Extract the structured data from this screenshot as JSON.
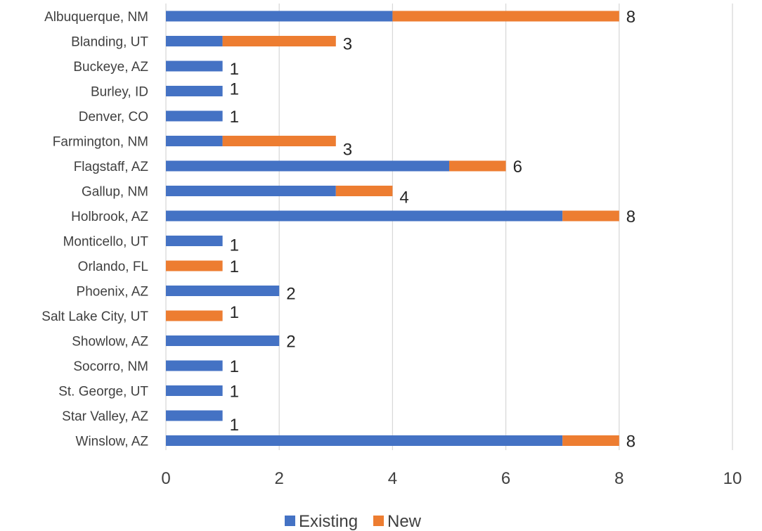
{
  "chart_data": {
    "type": "bar",
    "orientation": "horizontal",
    "stacked": true,
    "title": "",
    "xlabel": "",
    "ylabel": "",
    "categories": [
      "Albuquerque, NM",
      "Blanding, UT",
      "Buckeye, AZ",
      "Burley, ID",
      "Denver, CO",
      "Farmington, NM",
      "Flagstaff, AZ",
      "Gallup, NM",
      "Holbrook, AZ",
      "Monticello, UT",
      "Orlando, FL",
      "Phoenix, AZ",
      "Salt Lake City, UT",
      "Showlow, AZ",
      "Socorro, NM",
      "St. George, UT",
      "Star Valley, AZ",
      "Winslow, AZ"
    ],
    "series": [
      {
        "name": "Existing",
        "color": "#4472c4",
        "values": [
          4,
          1,
          1,
          1,
          1,
          1,
          5,
          3,
          7,
          1,
          0,
          2,
          0,
          2,
          1,
          1,
          1,
          7
        ]
      },
      {
        "name": "New",
        "color": "#ed7d31",
        "values": [
          4,
          2,
          0,
          0,
          0,
          2,
          1,
          1,
          1,
          0,
          1,
          0,
          1,
          0,
          0,
          0,
          0,
          1
        ]
      }
    ],
    "totals": [
      8,
      3,
      1,
      1,
      1,
      3,
      6,
      4,
      8,
      1,
      1,
      2,
      1,
      2,
      1,
      1,
      1,
      8
    ],
    "xlim": [
      0,
      10
    ],
    "xticks": [
      0,
      2,
      4,
      6,
      8,
      10
    ],
    "grid": true,
    "legend_position": "bottom"
  }
}
